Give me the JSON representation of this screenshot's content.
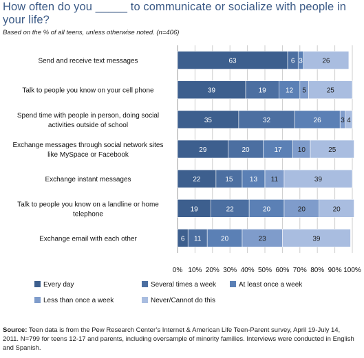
{
  "title": "How often do you _____ to communicate or socialize with people in your life?",
  "subtitle": "Based on the % of all teens, unless otherwise noted.  (n=406)",
  "source_label": "Source:",
  "source_text": " Teen data is from the Pew Research Center’s Internet & American Life Teen-Parent survey, April 19-July 14, 2011. N=799 for teens 12-17 and parents, including oversample of minority families. Interviews were conducted in English and Spanish.",
  "colors": {
    "every_day": "#3d5f8e",
    "several_times_week": "#4c6fa1",
    "at_least_once_week": "#5b80b5",
    "less_than_once_week": "#7f9ccb",
    "never": "#a9bde0",
    "title": "#3b5a86",
    "grid": "#cccccc"
  },
  "chart_data": {
    "type": "bar",
    "orientation": "horizontal",
    "stacked": true,
    "categories": [
      "Send and receive text messages",
      "Talk to people you know on your cell phone",
      "Spend time with people in person, doing social activities outside of school",
      "Exchange messages through social network sites like MySpace or Facebook",
      "Exchange instant messages",
      "Talk to people you know on a landline or home telephone",
      "Exchange email with each other"
    ],
    "series": [
      {
        "name": "Every day",
        "values": [
          63,
          39,
          35,
          29,
          22,
          19,
          6
        ]
      },
      {
        "name": "Several times a week",
        "values": [
          6,
          19,
          32,
          20,
          15,
          22,
          11
        ]
      },
      {
        "name": "At least once a week",
        "values": [
          3,
          12,
          26,
          17,
          13,
          20,
          20
        ]
      },
      {
        "name": "Less than once a week",
        "values": [
          null,
          5,
          3,
          10,
          11,
          20,
          23
        ]
      },
      {
        "name": "Never/Cannot do this",
        "values": [
          26,
          25,
          4,
          25,
          39,
          20,
          39
        ]
      }
    ],
    "xlim": [
      0,
      100
    ],
    "xticks": [
      "0%",
      "10%",
      "20%",
      "30%",
      "40%",
      "50%",
      "60%",
      "70%",
      "80%",
      "90%",
      "100%"
    ],
    "grid": true,
    "legend_position": "bottom"
  }
}
